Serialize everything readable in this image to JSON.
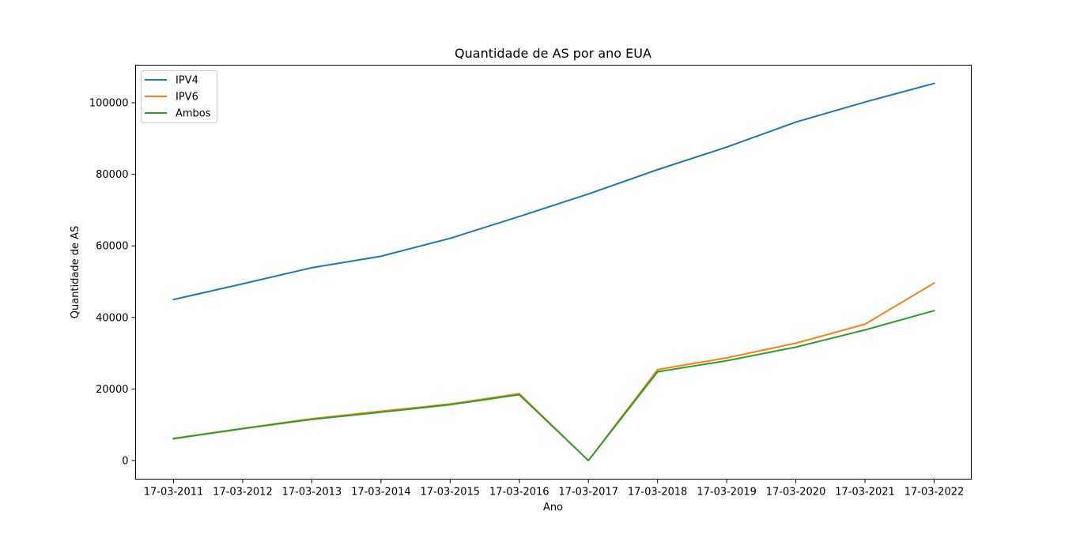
{
  "chart_data": {
    "type": "line",
    "title": "Quantidade de AS por ano EUA",
    "xlabel": "Ano",
    "ylabel": "Quantidade de AS",
    "categories": [
      "17-03-2011",
      "17-03-2012",
      "17-03-2013",
      "17-03-2014",
      "17-03-2015",
      "17-03-2016",
      "17-03-2017",
      "17-03-2018",
      "17-03-2019",
      "17-03-2020",
      "17-03-2021",
      "17-03-2022"
    ],
    "yticks": [
      0,
      20000,
      40000,
      60000,
      80000,
      100000
    ],
    "ylim": [
      -5200,
      110500
    ],
    "legend_position": "top-left",
    "grid": false,
    "series": [
      {
        "name": "IPV4",
        "color": "#1f77b4",
        "values": [
          45000,
          49400,
          53900,
          57100,
          62100,
          68200,
          74500,
          81300,
          87600,
          94600,
          100200,
          105400
        ]
      },
      {
        "name": "IPV6",
        "color": "#ff7f0e",
        "values": [
          6200,
          9000,
          11700,
          13800,
          15800,
          18700,
          0,
          25400,
          28700,
          32800,
          38100,
          49600
        ]
      },
      {
        "name": "Ambos",
        "color": "#2ca02c",
        "values": [
          6100,
          8900,
          11500,
          13500,
          15600,
          18400,
          0,
          24800,
          27900,
          31700,
          36500,
          41900
        ]
      }
    ]
  }
}
